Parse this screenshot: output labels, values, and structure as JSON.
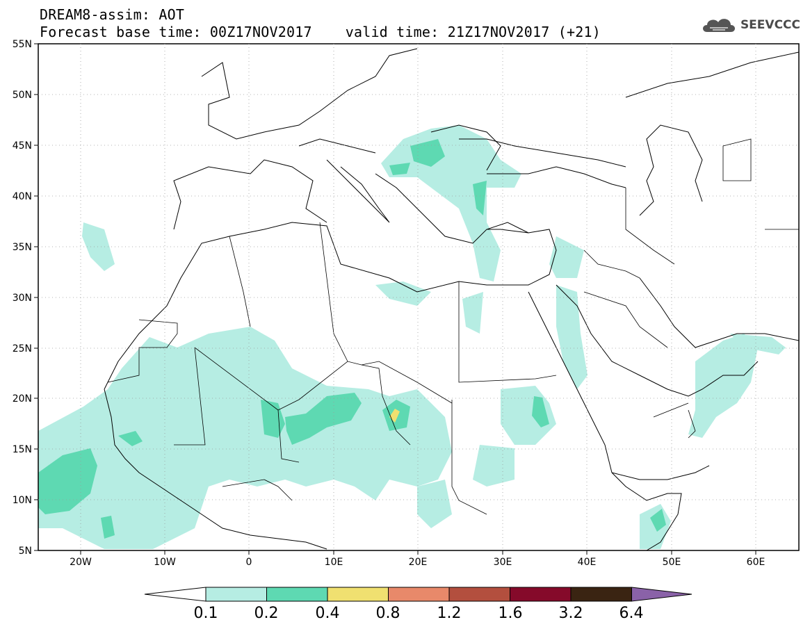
{
  "header": {
    "title": "DREAM8-assim: AOT",
    "base_time": "Forecast base time: 00Z17NOV2017",
    "valid_time": "valid time: 21Z17NOV2017 (+21)"
  },
  "logo": {
    "text": "SEEVCCC",
    "icon": "cloud-icon"
  },
  "map": {
    "lon_labels": [
      "20W",
      "10W",
      "0",
      "10E",
      "20E",
      "30E",
      "40E",
      "50E",
      "60E"
    ],
    "lat_labels": [
      "55N",
      "50N",
      "45N",
      "40N",
      "35N",
      "30N",
      "25N",
      "20N",
      "15N",
      "10N",
      "5N"
    ],
    "lon_range": [
      -25,
      65
    ],
    "lat_range": [
      5,
      55
    ]
  },
  "colorbar": {
    "labels": [
      "0.1",
      "0.2",
      "0.4",
      "0.8",
      "1.2",
      "1.6",
      "3.2",
      "6.4"
    ],
    "colors": [
      "#b6ede3",
      "#5ed9b2",
      "#f0e070",
      "#e8896a",
      "#b34f3e",
      "#850a2a",
      "#3a2412",
      "#8a62a8"
    ],
    "under_color": "#ffffff"
  }
}
